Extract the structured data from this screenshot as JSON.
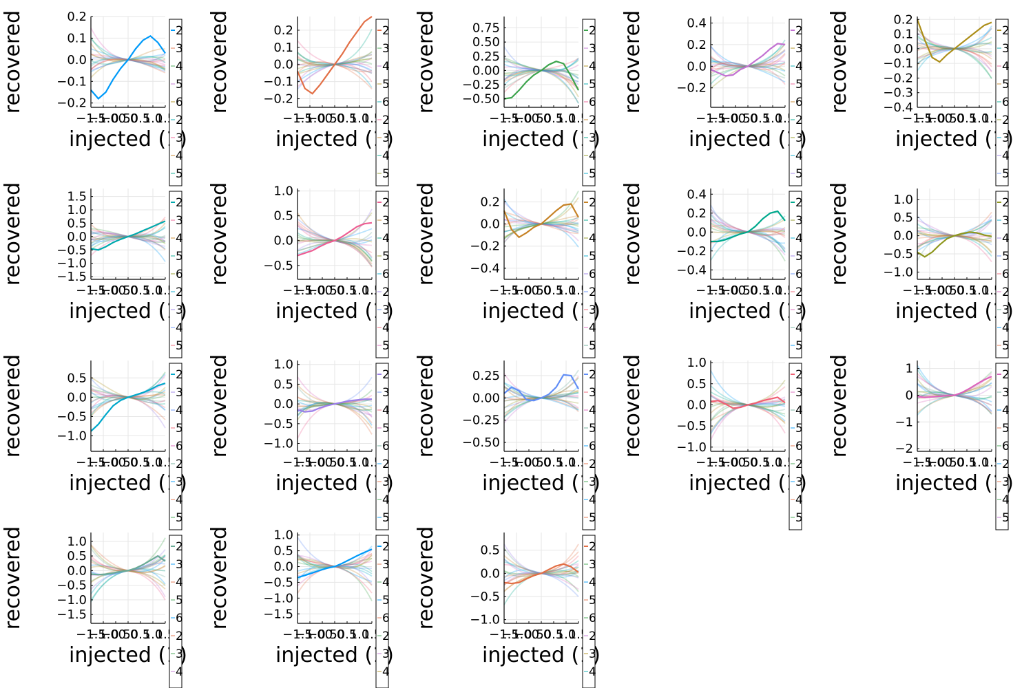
{
  "figure": {
    "xlabel_text": "injected (1)",
    "ylabel_text": "recovered",
    "legend_entries": [
      "2",
      "3",
      "4",
      "5",
      "6"
    ],
    "colors": [
      "#009af9",
      "#e26f46",
      "#3da44d",
      "#c271d2",
      "#ac8e18",
      "#00a9ad",
      "#ed5e93",
      "#c68225",
      "#00a98d",
      "#8e971e",
      "#00a8cb",
      "#9b7fe9",
      "#618df6",
      "#f05f73",
      "#dc63bc",
      "#6aaa96",
      "#009af9",
      "#e26f46",
      "#3da44d"
    ],
    "x_tick_labels": [
      "−1.5",
      "−1.0",
      "−0.5",
      "0.0",
      "0.5",
      "1.0",
      "1.5"
    ]
  },
  "chart_data": [
    {
      "type": "line",
      "highlight": 0,
      "ylim": [
        -0.22,
        0.2
      ],
      "yticks": [
        "0.2",
        "0.1",
        "0.0",
        "−0.1",
        "−0.2"
      ],
      "ytick_values": [
        0.2,
        0.1,
        0.0,
        -0.1,
        -0.2
      ],
      "xlim": [
        -1.5,
        1.5
      ],
      "highlight_curve": {
        "x": [
          -1.5,
          -1.2,
          -0.9,
          -0.6,
          -0.3,
          0,
          0.3,
          0.6,
          0.9,
          1.2,
          1.5
        ],
        "y": [
          -0.14,
          -0.18,
          -0.15,
          -0.09,
          -0.04,
          0.0,
          0.05,
          0.09,
          0.11,
          0.08,
          0.03
        ]
      }
    },
    {
      "type": "line",
      "highlight": 1,
      "ylim": [
        -0.25,
        0.28
      ],
      "yticks": [
        "0.2",
        "0.1",
        "0.0",
        "−0.1",
        "−0.2"
      ],
      "ytick_values": [
        0.2,
        0.1,
        0.0,
        -0.1,
        -0.2
      ],
      "xlim": [
        -1.5,
        1.5
      ],
      "highlight_curve": {
        "x": [
          -1.5,
          -1.2,
          -0.9,
          -0.6,
          -0.3,
          0,
          0.3,
          0.6,
          0.9,
          1.2,
          1.5
        ],
        "y": [
          -0.04,
          -0.14,
          -0.17,
          -0.12,
          -0.06,
          0.0,
          0.06,
          0.13,
          0.19,
          0.25,
          0.28
        ]
      }
    },
    {
      "type": "line",
      "highlight": 2,
      "ylim": [
        -0.65,
        0.95
      ],
      "yticks": [
        "0.75",
        "0.50",
        "0.25",
        "0.00",
        "−0.25",
        "−0.50"
      ],
      "ytick_values": [
        0.75,
        0.5,
        0.25,
        0.0,
        -0.25,
        -0.5
      ],
      "xlim": [
        -1.5,
        1.5
      ],
      "highlight_curve": {
        "x": [
          -1.5,
          -1.2,
          -0.9,
          -0.6,
          -0.3,
          0,
          0.3,
          0.6,
          0.9,
          1.2,
          1.5
        ],
        "y": [
          -0.5,
          -0.48,
          -0.35,
          -0.2,
          -0.08,
          0.0,
          0.1,
          0.16,
          0.12,
          -0.1,
          -0.35
        ]
      }
    },
    {
      "type": "line",
      "highlight": 3,
      "ylim": [
        -0.38,
        0.46
      ],
      "yticks": [
        "0.4",
        "0.2",
        "0.0",
        "−0.2"
      ],
      "ytick_values": [
        0.4,
        0.2,
        0.0,
        -0.2
      ],
      "xlim": [
        -1.5,
        1.5
      ],
      "highlight_curve": {
        "x": [
          -1.5,
          -1.2,
          -0.9,
          -0.6,
          -0.3,
          0,
          0.3,
          0.6,
          0.9,
          1.2,
          1.5
        ],
        "y": [
          -0.03,
          -0.06,
          -0.09,
          -0.08,
          -0.03,
          0.0,
          0.05,
          0.1,
          0.16,
          0.21,
          0.2
        ]
      }
    },
    {
      "type": "line",
      "highlight": 4,
      "ylim": [
        -0.4,
        0.22
      ],
      "yticks": [
        "0.2",
        "0.1",
        "0.0",
        "−0.1",
        "−0.2",
        "−0.3",
        "−0.4"
      ],
      "ytick_values": [
        0.2,
        0.1,
        0.0,
        -0.1,
        -0.2,
        -0.3,
        -0.4
      ],
      "xlim": [
        -1.5,
        1.5
      ],
      "highlight_curve": {
        "x": [
          -1.5,
          -1.2,
          -0.9,
          -0.6,
          -0.3,
          0,
          0.3,
          0.6,
          0.9,
          1.2,
          1.5
        ],
        "y": [
          0.2,
          0.06,
          -0.06,
          -0.09,
          -0.04,
          0.0,
          0.04,
          0.08,
          0.12,
          0.16,
          0.18
        ]
      }
    },
    {
      "type": "line",
      "highlight": 5,
      "ylim": [
        -1.6,
        1.8
      ],
      "yticks": [
        "1.5",
        "1.0",
        "0.5",
        "0.0",
        "−0.5",
        "−1.0",
        "−1.5"
      ],
      "ytick_values": [
        1.5,
        1.0,
        0.5,
        0.0,
        -0.5,
        -1.0,
        -1.5
      ],
      "xlim": [
        -1.5,
        1.5
      ],
      "highlight_curve": {
        "x": [
          -1.5,
          -1.2,
          -0.9,
          -0.6,
          -0.3,
          0,
          0.3,
          0.6,
          0.9,
          1.2,
          1.5
        ],
        "y": [
          -0.45,
          -0.5,
          -0.38,
          -0.22,
          -0.1,
          0.0,
          0.1,
          0.22,
          0.34,
          0.46,
          0.58
        ]
      }
    },
    {
      "type": "line",
      "highlight": 6,
      "ylim": [
        -0.78,
        1.05
      ],
      "yticks": [
        "1.0",
        "0.5",
        "0.0",
        "−0.5"
      ],
      "ytick_values": [
        1.0,
        0.5,
        0.0,
        -0.5
      ],
      "xlim": [
        -1.5,
        1.5
      ],
      "highlight_curve": {
        "x": [
          -1.5,
          -1.2,
          -0.9,
          -0.6,
          -0.3,
          0,
          0.3,
          0.6,
          0.9,
          1.2,
          1.5
        ],
        "y": [
          -0.3,
          -0.25,
          -0.2,
          -0.12,
          -0.05,
          0.0,
          0.08,
          0.18,
          0.28,
          0.34,
          0.36
        ]
      }
    },
    {
      "type": "line",
      "highlight": 7,
      "ylim": [
        -0.5,
        0.32
      ],
      "yticks": [
        "0.2",
        "0.0",
        "−0.2",
        "−0.4"
      ],
      "ytick_values": [
        0.2,
        0.0,
        -0.2,
        -0.4
      ],
      "xlim": [
        -1.5,
        1.5
      ],
      "highlight_curve": {
        "x": [
          -1.5,
          -1.2,
          -0.9,
          -0.6,
          -0.3,
          0,
          0.3,
          0.6,
          0.9,
          1.2,
          1.5
        ],
        "y": [
          0.12,
          -0.05,
          -0.12,
          -0.08,
          -0.03,
          0.0,
          0.06,
          0.12,
          0.17,
          0.18,
          0.06
        ]
      }
    },
    {
      "type": "line",
      "highlight": 8,
      "ylim": [
        -0.5,
        0.46
      ],
      "yticks": [
        "0.4",
        "0.2",
        "0.0",
        "−0.2",
        "−0.4"
      ],
      "ytick_values": [
        0.4,
        0.2,
        0.0,
        -0.2,
        -0.4
      ],
      "xlim": [
        -1.5,
        1.5
      ],
      "highlight_curve": {
        "x": [
          -1.5,
          -1.2,
          -0.9,
          -0.6,
          -0.3,
          0,
          0.3,
          0.6,
          0.9,
          1.2,
          1.5
        ],
        "y": [
          -0.1,
          -0.1,
          -0.08,
          -0.05,
          -0.02,
          0.0,
          0.06,
          0.14,
          0.2,
          0.22,
          0.12
        ]
      }
    },
    {
      "type": "line",
      "highlight": 9,
      "ylim": [
        -1.2,
        1.3
      ],
      "yticks": [
        "1.0",
        "0.5",
        "0.0",
        "−0.5",
        "−1.0"
      ],
      "ytick_values": [
        1.0,
        0.5,
        0.0,
        -0.5,
        -1.0
      ],
      "xlim": [
        -1.5,
        1.5
      ],
      "highlight_curve": {
        "x": [
          -1.5,
          -1.2,
          -0.9,
          -0.6,
          -0.3,
          0,
          0.3,
          0.6,
          0.9,
          1.2,
          1.5
        ],
        "y": [
          -0.45,
          -0.58,
          -0.45,
          -0.25,
          -0.08,
          0.0,
          0.06,
          0.1,
          0.08,
          0.02,
          -0.02
        ]
      }
    },
    {
      "type": "line",
      "highlight": 10,
      "ylim": [
        -1.4,
        0.95
      ],
      "yticks": [
        "0.5",
        "0.0",
        "−0.5",
        "−1.0"
      ],
      "ytick_values": [
        0.5,
        0.0,
        -0.5,
        -1.0
      ],
      "xlim": [
        -1.5,
        1.5
      ],
      "highlight_curve": {
        "x": [
          -1.5,
          -1.2,
          -0.9,
          -0.6,
          -0.3,
          0,
          0.3,
          0.6,
          0.9,
          1.2,
          1.5
        ],
        "y": [
          -0.88,
          -0.7,
          -0.45,
          -0.22,
          -0.08,
          0.0,
          0.06,
          0.12,
          0.2,
          0.3,
          0.36
        ]
      }
    },
    {
      "type": "line",
      "highlight": 11,
      "ylim": [
        -1.2,
        1.1
      ],
      "yticks": [
        "1.0",
        "0.5",
        "0.0",
        "−0.5",
        "−1.0"
      ],
      "ytick_values": [
        1.0,
        0.5,
        0.0,
        -0.5,
        -1.0
      ],
      "xlim": [
        -1.5,
        1.5
      ],
      "highlight_curve": {
        "x": [
          -1.5,
          -1.2,
          -0.9,
          -0.6,
          -0.3,
          0,
          0.3,
          0.6,
          0.9,
          1.2,
          1.5
        ],
        "y": [
          -0.15,
          -0.2,
          -0.18,
          -0.1,
          -0.04,
          0.0,
          0.04,
          0.08,
          0.1,
          0.12,
          0.12
        ]
      }
    },
    {
      "type": "line",
      "highlight": 12,
      "ylim": [
        -0.6,
        0.42
      ],
      "yticks": [
        "0.25",
        "0.00",
        "−0.25",
        "−0.50"
      ],
      "ytick_values": [
        0.25,
        0.0,
        -0.25,
        -0.5
      ],
      "xlim": [
        -1.5,
        1.5
      ],
      "highlight_curve": {
        "x": [
          -1.5,
          -1.2,
          -0.9,
          -0.6,
          -0.3,
          0,
          0.3,
          0.6,
          0.9,
          1.2,
          1.5
        ],
        "y": [
          0.05,
          0.12,
          0.08,
          -0.02,
          -0.03,
          0.0,
          0.04,
          0.12,
          0.26,
          0.25,
          0.1
        ]
      }
    },
    {
      "type": "line",
      "highlight": 13,
      "ylim": [
        -1.1,
        1.05
      ],
      "yticks": [
        "1.0",
        "0.5",
        "0.0",
        "−0.5",
        "−1.0"
      ],
      "ytick_values": [
        1.0,
        0.5,
        0.0,
        -0.5,
        -1.0
      ],
      "xlim": [
        -1.5,
        1.5
      ],
      "highlight_curve": {
        "x": [
          -1.5,
          -1.2,
          -0.9,
          -0.6,
          -0.3,
          0,
          0.3,
          0.6,
          0.9,
          1.2,
          1.5
        ],
        "y": [
          0.08,
          0.1,
          0.02,
          -0.08,
          -0.06,
          0.0,
          0.04,
          0.1,
          0.14,
          0.18,
          0.05
        ]
      }
    },
    {
      "type": "line",
      "highlight": 14,
      "ylim": [
        -2.1,
        1.3
      ],
      "yticks": [
        "1",
        "0",
        "−1",
        "−2"
      ],
      "ytick_values": [
        1.0,
        0.0,
        -1.0,
        -2.0
      ],
      "xlim": [
        -1.5,
        1.5
      ],
      "highlight_curve": {
        "x": [
          -1.5,
          -1.2,
          -0.9,
          -0.6,
          -0.3,
          0,
          0.3,
          0.6,
          0.9,
          1.2,
          1.5
        ],
        "y": [
          -0.05,
          -0.08,
          -0.06,
          -0.04,
          -0.02,
          0.0,
          0.1,
          0.25,
          0.42,
          0.58,
          0.7
        ]
      }
    },
    {
      "type": "line",
      "highlight": 15,
      "ylim": [
        -1.8,
        1.3
      ],
      "yticks": [
        "1.0",
        "0.5",
        "0.0",
        "−0.5",
        "−1.0",
        "−1.5"
      ],
      "ytick_values": [
        1.0,
        0.5,
        0.0,
        -0.5,
        -1.0,
        -1.5
      ],
      "xlim": [
        -1.5,
        1.5
      ],
      "highlight_curve": {
        "x": [
          -1.5,
          -1.2,
          -0.9,
          -0.6,
          -0.3,
          0,
          0.3,
          0.6,
          0.9,
          1.2,
          1.5
        ],
        "y": [
          -0.12,
          -0.14,
          -0.12,
          -0.08,
          -0.03,
          0.0,
          0.08,
          0.2,
          0.35,
          0.5,
          0.32
        ]
      }
    },
    {
      "type": "line",
      "highlight": 16,
      "ylim": [
        -1.8,
        1.08
      ],
      "yticks": [
        "1.0",
        "0.5",
        "0.0",
        "−0.5",
        "−1.0",
        "−1.5"
      ],
      "ytick_values": [
        1.0,
        0.5,
        0.0,
        -0.5,
        -1.0,
        -1.5
      ],
      "xlim": [
        -1.5,
        1.5
      ],
      "highlight_curve": {
        "x": [
          -1.5,
          -1.2,
          -0.9,
          -0.6,
          -0.3,
          0,
          0.3,
          0.6,
          0.9,
          1.2,
          1.5
        ],
        "y": [
          -0.35,
          -0.28,
          -0.2,
          -0.12,
          -0.05,
          0.0,
          0.1,
          0.22,
          0.34,
          0.45,
          0.55
        ]
      }
    },
    {
      "type": "line",
      "highlight": 17,
      "ylim": [
        -1.08,
        0.88
      ],
      "yticks": [
        "0.5",
        "0.0",
        "−0.5",
        "−1.0"
      ],
      "ytick_values": [
        0.5,
        0.0,
        -0.5,
        -1.0
      ],
      "xlim": [
        -1.5,
        1.5
      ],
      "highlight_curve": {
        "x": [
          -1.5,
          -1.2,
          -0.9,
          -0.6,
          -0.3,
          0,
          0.3,
          0.6,
          0.9,
          1.2,
          1.5
        ],
        "y": [
          -0.2,
          -0.22,
          -0.2,
          -0.12,
          -0.05,
          0.0,
          0.08,
          0.16,
          0.2,
          0.14,
          0.02
        ]
      }
    }
  ]
}
